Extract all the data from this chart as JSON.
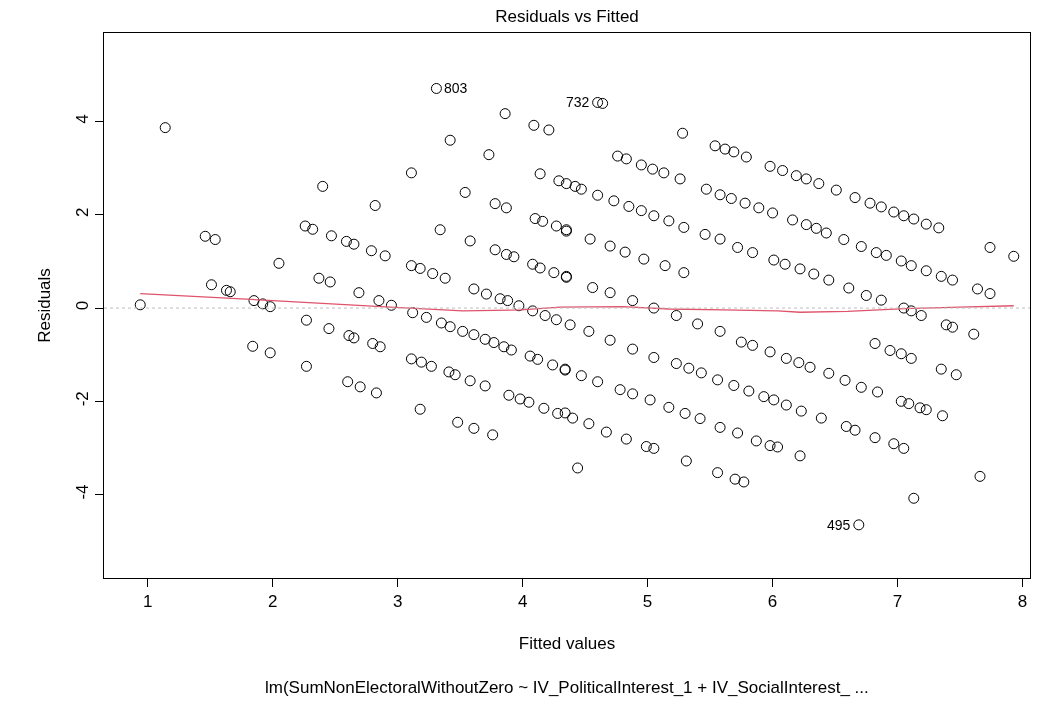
{
  "chart_data": {
    "type": "scatter",
    "title": "Residuals vs Fitted",
    "xlabel": "Fitted values",
    "ylabel": "Residuals",
    "xlim": [
      0.65,
      8.06
    ],
    "ylim": [
      -5.79,
      5.9
    ],
    "xticks": [
      1,
      2,
      3,
      4,
      5,
      6,
      7,
      8
    ],
    "yticks": [
      -4,
      -2,
      0,
      2,
      4
    ],
    "grid": false,
    "ref_lines": [
      {
        "axis": "y",
        "value": 0,
        "color": "#bebebe",
        "line_style": "dotted"
      }
    ],
    "annotations": [
      {
        "text": "803",
        "x": 3.31,
        "y": 4.71
      },
      {
        "text": "732",
        "x": 4.6,
        "y": 4.41
      },
      {
        "text": "495",
        "x": 6.69,
        "y": -4.65
      },
      "lm(SumNonElectoralWithoutZero ~ IV_PoliticalInterest_1 + IV_SocialInterest_ ..."
    ],
    "series": [
      {
        "marker": "circle",
        "color": "#000000",
        "x": [
          0.94,
          1.14,
          1.46,
          1.54,
          1.51,
          1.63,
          1.66,
          1.85,
          1.92,
          1.98,
          1.84,
          1.98,
          2.05,
          2.4,
          2.26,
          2.32,
          2.47,
          2.59,
          2.65,
          2.79,
          2.9,
          2.37,
          2.46,
          2.27,
          2.45,
          2.61,
          2.65,
          2.8,
          2.86,
          2.27,
          2.6,
          2.7,
          2.83,
          2.69,
          2.85,
          2.95,
          2.82,
          3.11,
          3.31,
          3.42,
          3.54,
          3.73,
          3.86,
          4.09,
          4.21,
          3.34,
          3.58,
          3.11,
          3.18,
          3.28,
          3.38,
          3.12,
          3.23,
          3.35,
          3.42,
          3.52,
          3.61,
          3.7,
          3.77,
          3.85,
          3.91,
          3.11,
          3.19,
          3.27,
          3.41,
          3.46,
          3.58,
          3.7,
          3.89,
          3.98,
          4.05,
          4.17,
          4.28,
          4.4,
          3.18,
          3.48,
          3.61,
          3.76,
          4.44,
          3.61,
          3.71,
          3.82,
          3.88,
          3.97,
          4.08,
          4.18,
          4.27,
          3.78,
          3.87,
          3.93,
          4.08,
          4.14,
          4.25,
          4.35,
          3.78,
          3.87,
          4.1,
          4.16,
          4.27,
          4.35,
          4.14,
          4.29,
          4.42,
          4.06,
          4.12,
          4.24,
          4.34,
          4.6,
          4.64,
          5.28,
          5.54,
          5.62,
          5.69,
          5.79,
          4.76,
          4.83,
          4.95,
          5.04,
          5.13,
          5.26,
          5.98,
          6.08,
          6.19,
          6.27,
          6.37,
          6.51,
          6.66,
          6.78,
          6.87,
          6.97,
          7.05,
          7.13,
          7.23,
          7.33,
          4.35,
          4.47,
          4.6,
          4.73,
          4.85,
          4.95,
          5.05,
          5.17,
          5.29,
          5.47,
          5.58,
          5.67,
          5.78,
          5.89,
          6.0,
          6.16,
          6.27,
          6.35,
          6.43,
          6.57,
          6.71,
          6.83,
          6.91,
          7.03,
          7.11,
          7.23,
          7.35,
          7.44,
          7.74,
          7.93,
          7.64,
          7.74,
          4.35,
          4.54,
          4.7,
          4.82,
          4.97,
          5.14,
          5.29,
          5.46,
          5.58,
          5.72,
          5.84,
          6.01,
          6.1,
          6.22,
          6.33,
          6.45,
          6.61,
          6.75,
          6.87,
          7.05,
          7.11,
          7.19,
          7.39,
          7.44,
          7.61,
          4.35,
          4.56,
          4.7,
          4.88,
          5.05,
          5.23,
          5.4,
          5.58,
          5.75,
          5.84,
          5.98,
          6.11,
          6.21,
          6.3,
          6.45,
          6.58,
          6.71,
          6.82,
          6.94,
          7.03,
          7.11,
          7.35,
          7.47,
          4.38,
          4.53,
          4.7,
          4.88,
          5.05,
          5.23,
          5.33,
          5.43,
          5.56,
          5.69,
          5.81,
          5.93,
          6.01,
          6.11,
          6.23,
          6.39,
          6.59,
          6.66,
          6.84,
          7.03,
          7.09,
          7.18,
          7.23,
          7.36,
          4.34,
          4.47,
          4.6,
          4.78,
          4.88,
          5.02,
          5.17,
          5.3,
          5.42,
          5.58,
          5.72,
          5.87,
          5.98,
          6.04,
          6.22,
          6.82,
          6.97,
          7.05,
          4.34,
          4.53,
          4.67,
          4.83,
          4.99,
          5.05,
          5.31,
          5.56,
          5.7,
          5.77,
          6.69,
          7.13,
          7.66
        ],
        "values": [
          0.07,
          3.87,
          1.54,
          1.47,
          0.5,
          0.38,
          0.35,
          0.16,
          0.09,
          0.03,
          -0.82,
          -0.96,
          0.96,
          2.61,
          1.76,
          1.69,
          1.55,
          1.43,
          1.37,
          1.23,
          1.12,
          0.64,
          0.56,
          -0.26,
          -0.44,
          -0.59,
          -0.64,
          -0.76,
          -0.83,
          -1.25,
          -1.58,
          -1.69,
          -1.82,
          0.33,
          0.16,
          0.06,
          2.2,
          2.9,
          4.71,
          3.6,
          2.48,
          3.29,
          4.17,
          3.92,
          3.82,
          1.68,
          1.44,
          0.91,
          0.85,
          0.74,
          0.64,
          -0.1,
          -0.2,
          -0.32,
          -0.4,
          -0.5,
          -0.57,
          -0.67,
          -0.74,
          -0.83,
          -0.9,
          -1.09,
          -1.16,
          -1.25,
          -1.37,
          -1.43,
          -1.56,
          -1.67,
          -1.87,
          -1.95,
          -2.02,
          -2.15,
          -2.26,
          -2.36,
          -2.17,
          -2.45,
          -2.58,
          -2.72,
          -3.43,
          0.41,
          0.3,
          0.2,
          0.16,
          0.05,
          -0.06,
          -0.16,
          -0.25,
          1.25,
          1.15,
          1.1,
          0.94,
          0.86,
          0.76,
          0.66,
          2.24,
          2.15,
          1.92,
          1.86,
          1.76,
          1.65,
          2.88,
          2.73,
          2.61,
          -1.03,
          -1.1,
          -1.22,
          -1.33,
          4.41,
          4.39,
          3.75,
          3.48,
          3.41,
          3.35,
          3.24,
          3.26,
          3.2,
          3.07,
          2.98,
          2.9,
          2.77,
          3.04,
          2.95,
          2.84,
          2.77,
          2.67,
          2.53,
          2.37,
          2.25,
          2.17,
          2.06,
          1.98,
          1.91,
          1.8,
          1.72,
          2.67,
          2.55,
          2.42,
          2.3,
          2.18,
          2.09,
          1.98,
          1.87,
          1.73,
          2.55,
          2.43,
          2.35,
          2.25,
          2.15,
          2.04,
          1.89,
          1.79,
          1.71,
          1.61,
          1.47,
          1.32,
          1.19,
          1.13,
          1.01,
          0.91,
          0.8,
          0.68,
          0.6,
          1.3,
          1.11,
          0.41,
          0.31,
          1.68,
          1.48,
          1.33,
          1.2,
          1.05,
          0.91,
          0.76,
          1.58,
          1.48,
          1.3,
          1.19,
          1.03,
          0.94,
          0.84,
          0.73,
          0.6,
          0.43,
          0.27,
          0.17,
          0.0,
          -0.06,
          -0.16,
          -0.36,
          -0.41,
          -0.56,
          0.68,
          0.44,
          0.33,
          0.16,
          0.0,
          -0.16,
          -0.34,
          -0.5,
          -0.73,
          -0.8,
          -0.94,
          -1.08,
          -1.17,
          -1.27,
          -1.4,
          -1.55,
          -1.7,
          -0.76,
          -0.91,
          -0.98,
          -1.08,
          -1.31,
          -1.43,
          -0.36,
          -0.5,
          -0.69,
          -0.88,
          -1.06,
          -1.19,
          -1.29,
          -1.39,
          -1.54,
          -1.66,
          -1.78,
          -1.9,
          -1.97,
          -2.08,
          -2.21,
          -2.36,
          -2.54,
          -2.62,
          -1.8,
          -2.0,
          -2.05,
          -2.14,
          -2.18,
          -2.31,
          -1.31,
          -1.45,
          -1.58,
          -1.75,
          -1.84,
          -1.97,
          -2.13,
          -2.26,
          -2.37,
          -2.56,
          -2.68,
          -2.85,
          -2.95,
          -2.98,
          -3.17,
          -2.78,
          -2.91,
          -3.01,
          -2.25,
          -2.48,
          -2.66,
          -2.81,
          -2.97,
          -3.01,
          -3.28,
          -3.53,
          -3.67,
          -3.73,
          -4.65,
          -4.08,
          -3.61
        ]
      },
      {
        "type": "line",
        "marker": "none",
        "color": "#df536b",
        "x": [
          0.94,
          2.0,
          2.94,
          3.52,
          3.99,
          4.3,
          4.8,
          5.17,
          5.6,
          6.04,
          6.22,
          6.6,
          7.06,
          7.5,
          7.93
        ],
        "values": [
          0.31,
          0.16,
          0.02,
          -0.06,
          -0.04,
          0.02,
          0.03,
          -0.02,
          -0.04,
          -0.06,
          -0.09,
          -0.07,
          -0.01,
          0.02,
          0.05
        ]
      }
    ]
  }
}
